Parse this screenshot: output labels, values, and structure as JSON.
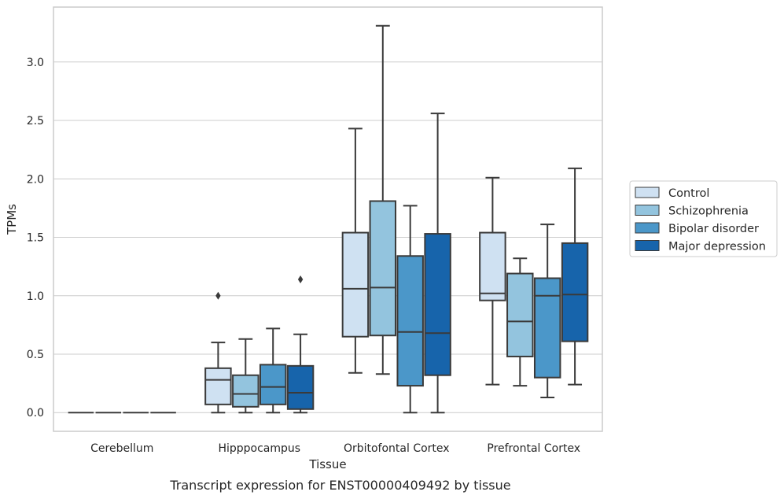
{
  "chart_data": {
    "type": "box",
    "caption": "Transcript expression for ENST00000409492 by tissue",
    "xlabel": "Tissue",
    "ylabel": "TPMs",
    "ylim": [
      -0.16,
      3.47
    ],
    "yticks": [
      0.0,
      0.5,
      1.0,
      1.5,
      2.0,
      2.5,
      3.0
    ],
    "grid": true,
    "legend_position": "outside-right",
    "categories": [
      "Cerebellum",
      "Hipppocampus",
      "Orbitofontal Cortex",
      "Prefrontal Cortex"
    ],
    "series": [
      {
        "name": "Control",
        "color": "#cfe1f2",
        "boxes": [
          {
            "whisker_low": 0.0,
            "q1": 0.0,
            "median": 0.0,
            "q3": 0.0,
            "whisker_high": 0.0,
            "outliers": []
          },
          {
            "whisker_low": 0.0,
            "q1": 0.07,
            "median": 0.28,
            "q3": 0.38,
            "whisker_high": 0.6,
            "outliers": [
              1.0
            ]
          },
          {
            "whisker_low": 0.34,
            "q1": 0.65,
            "median": 1.06,
            "q3": 1.54,
            "whisker_high": 2.43,
            "outliers": []
          },
          {
            "whisker_low": 0.24,
            "q1": 0.96,
            "median": 1.02,
            "q3": 1.54,
            "whisker_high": 2.01,
            "outliers": []
          }
        ]
      },
      {
        "name": "Schizophrenia",
        "color": "#93c4de",
        "boxes": [
          {
            "whisker_low": 0.0,
            "q1": 0.0,
            "median": 0.0,
            "q3": 0.0,
            "whisker_high": 0.0,
            "outliers": []
          },
          {
            "whisker_low": 0.0,
            "q1": 0.05,
            "median": 0.16,
            "q3": 0.32,
            "whisker_high": 0.63,
            "outliers": []
          },
          {
            "whisker_low": 0.33,
            "q1": 0.66,
            "median": 1.07,
            "q3": 1.81,
            "whisker_high": 3.31,
            "outliers": []
          },
          {
            "whisker_low": 0.23,
            "q1": 0.48,
            "median": 0.78,
            "q3": 1.19,
            "whisker_high": 1.32,
            "outliers": []
          }
        ]
      },
      {
        "name": "Bipolar disorder",
        "color": "#4b97c9",
        "boxes": [
          {
            "whisker_low": 0.0,
            "q1": 0.0,
            "median": 0.0,
            "q3": 0.0,
            "whisker_high": 0.0,
            "outliers": []
          },
          {
            "whisker_low": 0.0,
            "q1": 0.07,
            "median": 0.22,
            "q3": 0.41,
            "whisker_high": 0.72,
            "outliers": []
          },
          {
            "whisker_low": 0.0,
            "q1": 0.23,
            "median": 0.69,
            "q3": 1.34,
            "whisker_high": 1.77,
            "outliers": []
          },
          {
            "whisker_low": 0.13,
            "q1": 0.3,
            "median": 1.0,
            "q3": 1.15,
            "whisker_high": 1.61,
            "outliers": []
          }
        ]
      },
      {
        "name": "Major depression",
        "color": "#1764ab",
        "boxes": [
          {
            "whisker_low": 0.0,
            "q1": 0.0,
            "median": 0.0,
            "q3": 0.0,
            "whisker_high": 0.0,
            "outliers": []
          },
          {
            "whisker_low": 0.0,
            "q1": 0.03,
            "median": 0.17,
            "q3": 0.4,
            "whisker_high": 0.67,
            "outliers": [
              1.14
            ]
          },
          {
            "whisker_low": 0.0,
            "q1": 0.32,
            "median": 0.68,
            "q3": 1.53,
            "whisker_high": 2.56,
            "outliers": []
          },
          {
            "whisker_low": 0.24,
            "q1": 0.61,
            "median": 1.01,
            "q3": 1.45,
            "whisker_high": 2.09,
            "outliers": []
          }
        ]
      }
    ]
  },
  "colors": {
    "grid": "#cccccc",
    "axes_edge": "#cccccc",
    "box_line": "#3a3a3a",
    "text": "#262626"
  }
}
